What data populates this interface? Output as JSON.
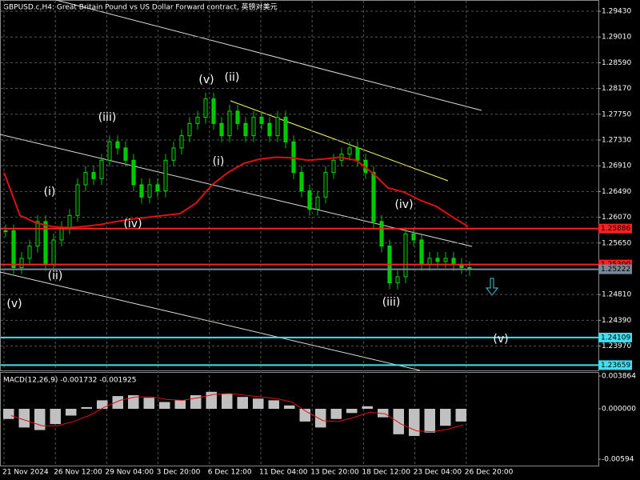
{
  "chart_data": {
    "type": "line",
    "title": "GBPUSD.c,H4:  Great Britain Pound vs US Dollar Forward contract, 英镑对美元",
    "close": [
      1.2585,
      1.2525,
      1.254,
      1.256,
      1.26,
      1.253,
      1.257,
      1.259,
      1.261,
      1.266,
      1.268,
      1.267,
      1.27,
      1.273,
      1.272,
      1.27,
      1.266,
      1.264,
      1.266,
      1.265,
      1.27,
      1.272,
      1.274,
      1.276,
      1.277,
      1.28,
      1.276,
      1.274,
      1.278,
      1.276,
      1.274,
      1.277,
      1.276,
      1.274,
      1.277,
      1.273,
      1.268,
      1.265,
      1.262,
      1.264,
      1.268,
      1.27,
      1.271,
      1.272,
      1.27,
      1.268,
      1.26,
      1.256,
      1.25,
      1.251,
      1.258,
      1.257,
      1.253,
      1.254,
      1.2535,
      1.254,
      1.253,
      1.2525,
      1.2522
    ],
    "ma": [
      1.268,
      1.261,
      1.2598,
      1.2592,
      1.259,
      1.2592,
      1.2595,
      1.26,
      1.2604,
      1.2607,
      1.261,
      1.2613,
      1.263,
      1.266,
      1.268,
      1.2695,
      1.2702,
      1.2705,
      1.2704,
      1.27,
      1.2702,
      1.2705,
      1.27,
      1.268,
      1.2655,
      1.2648,
      1.2635,
      1.2625,
      1.2608,
      1.2592
    ],
    "ylim": [
      1.23573,
      1.29613
    ],
    "yticks": [
      {
        "value": 1.2943,
        "label": "1.29430"
      },
      {
        "value": 1.2901,
        "label": "1.29010"
      },
      {
        "value": 1.2859,
        "label": "1.28590"
      },
      {
        "value": 1.2817,
        "label": "1.28170"
      },
      {
        "value": 1.2775,
        "label": "1.27750"
      },
      {
        "value": 1.2733,
        "label": "1.27330"
      },
      {
        "value": 1.2691,
        "label": "1.26910"
      },
      {
        "value": 1.2649,
        "label": "1.26490"
      },
      {
        "value": 1.2607,
        "label": "1.26070"
      },
      {
        "value": 1.2565,
        "label": "1.25650"
      },
      {
        "value": 1.2481,
        "label": "1.24810"
      },
      {
        "value": 1.2439,
        "label": "1.24390"
      },
      {
        "value": 1.2397,
        "label": "1.23970"
      }
    ],
    "levels": [
      {
        "value": 1.25886,
        "color": "#ff2020"
      },
      {
        "value": 1.253,
        "label": "1.25300",
        "color": "#ff2020"
      },
      {
        "value": 1.24109,
        "color": "#40e0f0"
      },
      {
        "value": 1.23659,
        "color": "#40e0f0"
      },
      {
        "value": 1.25222,
        "color": "#778899"
      }
    ],
    "x_labels": [
      "21 Nov 2024",
      "26 Nov 12:00",
      "29 Nov 04:00",
      "3 Dec 20:00",
      "6 Dec 12:00",
      "11 Dec 04:00",
      "13 Dec 20:00",
      "18 Dec 12:00",
      "23 Dec 04:00",
      "26 Dec 20:00"
    ],
    "waves": [
      "(v)",
      "(ii)",
      "(i)",
      "(iii)",
      "(iv)",
      "(v)",
      "(ii)",
      "(i)",
      "(iii)",
      "(iv)",
      "(v)"
    ],
    "macd": {
      "label": "MACD(12,26,9) -0.001732 -0.001925",
      "histogram": [
        -0.0012,
        -0.0022,
        -0.0025,
        -0.0018,
        -0.0008,
        0.0002,
        0.001,
        0.0015,
        0.0016,
        0.0013,
        0.0008,
        0.001,
        0.0016,
        0.002,
        0.0018,
        0.0014,
        0.0012,
        0.001,
        0.0004,
        -0.0015,
        -0.0022,
        -0.0012,
        -0.0005,
        0.0003,
        -0.001,
        -0.003,
        -0.0032,
        -0.0028,
        -0.002,
        -0.0015
      ],
      "signal": [
        -0.0008,
        -0.0014,
        -0.002,
        -0.002,
        -0.0015,
        -0.0008,
        0.0002,
        0.001,
        0.0014,
        0.0014,
        0.0011,
        0.001,
        0.0013,
        0.0017,
        0.0018,
        0.0016,
        0.0014,
        0.0012,
        0.0008,
        -0.0004,
        -0.0014,
        -0.0015,
        -0.001,
        -0.0004,
        -0.0006,
        -0.0018,
        -0.0026,
        -0.0027,
        -0.0024,
        -0.0019
      ],
      "ylim": [
        -0.00669,
        0.00424
      ],
      "yticks": [
        0.003864,
        {
          "value": 0,
          "label": "0.000000"
        },
        -0.00594
      ]
    }
  }
}
